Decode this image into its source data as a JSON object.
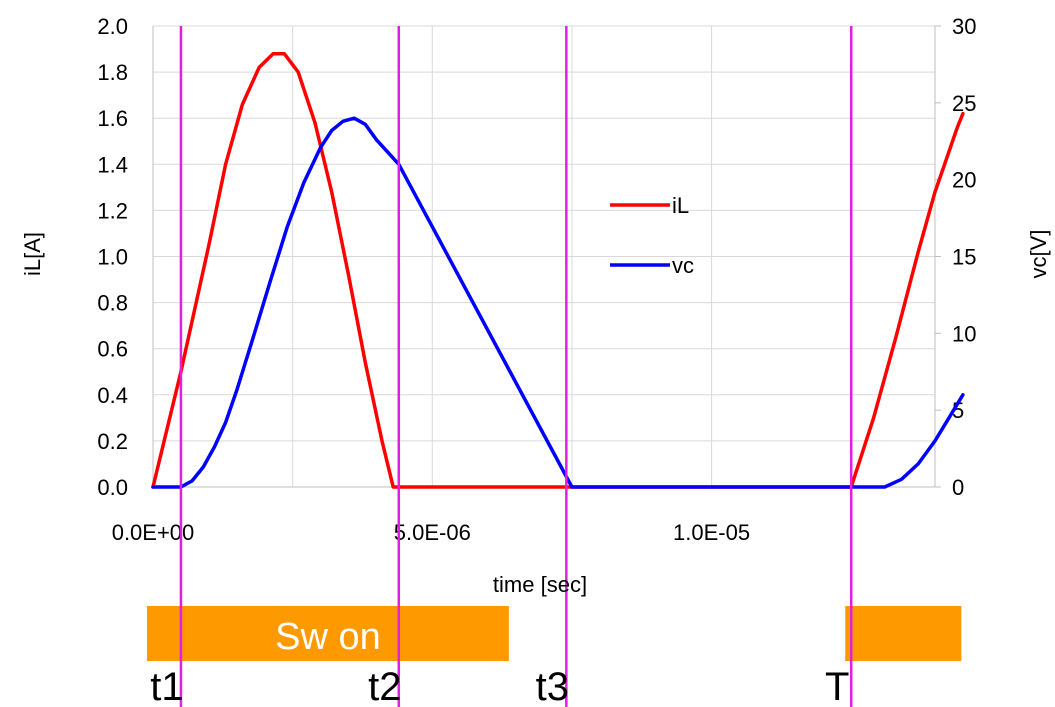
{
  "chart_data": {
    "type": "line",
    "xlabel": "time [sec]",
    "ylabel_left": "iL[A]",
    "ylabel_right": "vc[V]",
    "xlim": [
      0,
      1.4e-05
    ],
    "ylim_left": [
      0,
      2.0
    ],
    "ylim_right": [
      0,
      30
    ],
    "x_ticks": [
      0,
      5e-06,
      1e-05
    ],
    "x_tick_labels": [
      "0.0E+00",
      "5.0E-06",
      "1.0E-05"
    ],
    "y_left_ticks": [
      "0.0",
      "0.2",
      "0.4",
      "0.6",
      "0.8",
      "1.0",
      "1.2",
      "1.4",
      "1.6",
      "1.8",
      "2.0"
    ],
    "y_right_ticks": [
      "0",
      "5",
      "10",
      "15",
      "20",
      "25",
      "30"
    ],
    "grid": true,
    "legend_position": "center",
    "series": [
      {
        "name": "iL",
        "axis": "left",
        "color": "#ff0000",
        "points": [
          [
            0,
            0
          ],
          [
            5e-07,
            0.5
          ],
          [
            1e-06,
            1.05
          ],
          [
            1.3e-06,
            1.4
          ],
          [
            1.6e-06,
            1.66
          ],
          [
            1.9e-06,
            1.82
          ],
          [
            2.15e-06,
            1.88
          ],
          [
            2.35e-06,
            1.88
          ],
          [
            2.6e-06,
            1.8
          ],
          [
            2.9e-06,
            1.58
          ],
          [
            3.2e-06,
            1.28
          ],
          [
            3.5e-06,
            0.92
          ],
          [
            3.8e-06,
            0.54
          ],
          [
            4.1e-06,
            0.2
          ],
          [
            4.3e-06,
            0
          ],
          [
            7.5e-06,
            0
          ],
          [
            1.25e-05,
            0
          ],
          [
            1.29e-05,
            0.3
          ],
          [
            1.33e-05,
            0.65
          ],
          [
            1.37e-05,
            1.02
          ],
          [
            1.4e-05,
            1.28
          ],
          [
            1.42e-05,
            1.42
          ],
          [
            1.44e-05,
            1.56
          ],
          [
            1.45e-05,
            1.62
          ]
        ]
      },
      {
        "name": "vc",
        "axis": "right",
        "color": "#0000ff",
        "points": [
          [
            0,
            0
          ],
          [
            5e-07,
            0
          ],
          [
            7e-07,
            0.4
          ],
          [
            9e-07,
            1.3
          ],
          [
            1.1e-06,
            2.6
          ],
          [
            1.3e-06,
            4.2
          ],
          [
            1.5e-06,
            6.3
          ],
          [
            1.8e-06,
            9.8
          ],
          [
            2.1e-06,
            13.4
          ],
          [
            2.4e-06,
            16.9
          ],
          [
            2.7e-06,
            19.8
          ],
          [
            3e-06,
            22.1
          ],
          [
            3.2e-06,
            23.2
          ],
          [
            3.4e-06,
            23.8
          ],
          [
            3.6e-06,
            24.0
          ],
          [
            3.8e-06,
            23.6
          ],
          [
            4e-06,
            22.6
          ],
          [
            4.4e-06,
            21.0
          ],
          [
            7.5e-06,
            0
          ],
          [
            1.25e-05,
            0
          ],
          [
            1.31e-05,
            0
          ],
          [
            1.34e-05,
            0.5
          ],
          [
            1.37e-05,
            1.5
          ],
          [
            1.4e-05,
            3.0
          ],
          [
            1.43e-05,
            4.8
          ],
          [
            1.45e-05,
            6.0
          ]
        ]
      }
    ],
    "markers": [
      {
        "label": "t1",
        "x": 5e-07
      },
      {
        "label": "t2",
        "x": 4.4e-06
      },
      {
        "label": "t3",
        "x": 7.4e-06
      },
      {
        "label": "T",
        "x": 1.25e-05
      }
    ],
    "switch_bars": [
      {
        "label": "Sw on",
        "start": 0,
        "end": 6.3e-06
      },
      {
        "label": "",
        "start": 1.25e-05,
        "end": 1.44e-05
      }
    ],
    "colors": {
      "marker_line": "#e020e0",
      "switch_bar": "#ff9900",
      "grid": "#d9d9d9"
    }
  }
}
